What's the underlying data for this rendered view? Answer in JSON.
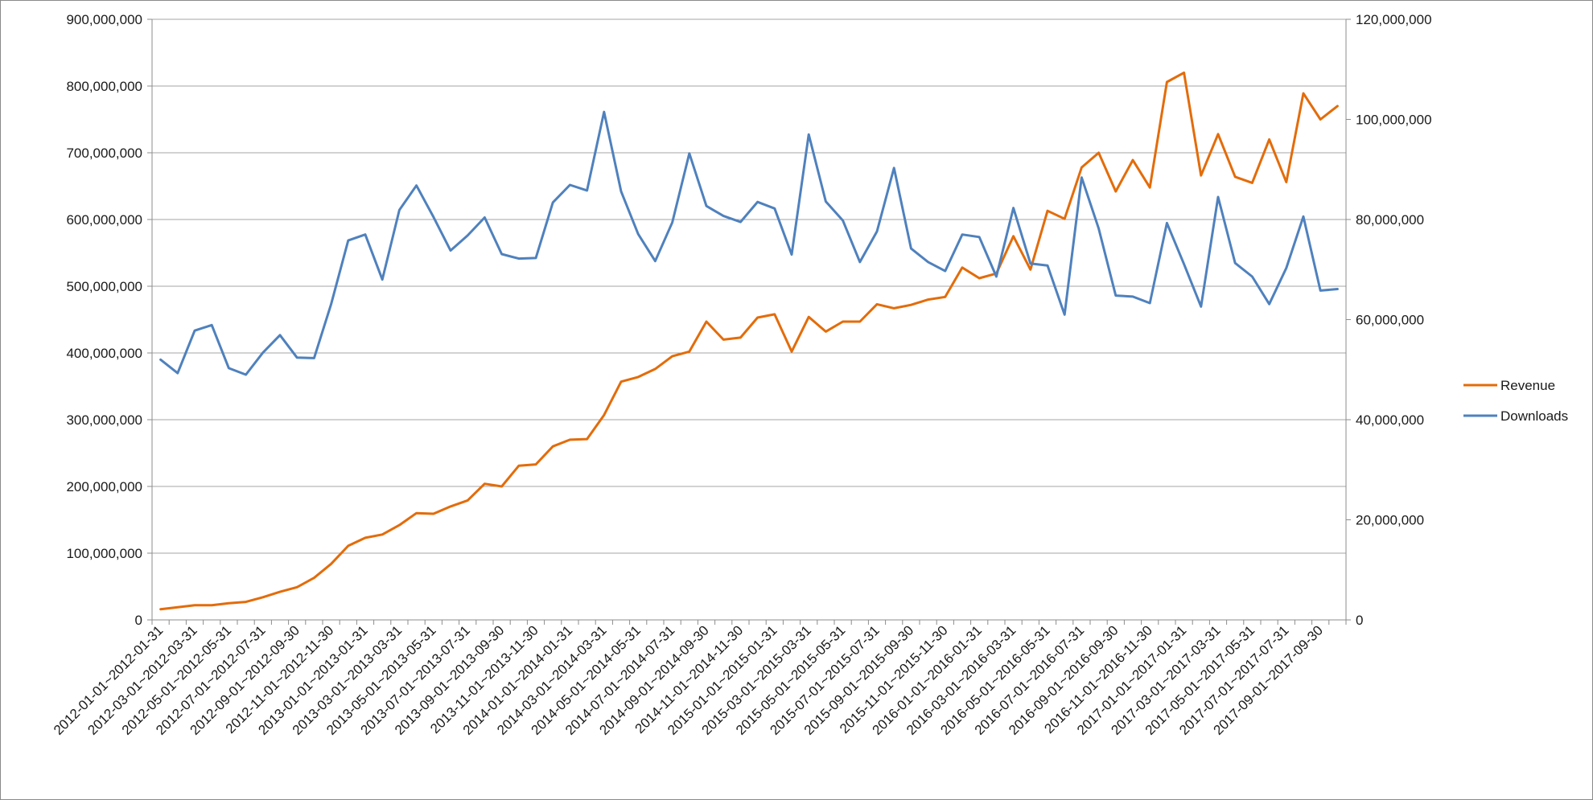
{
  "chart_data": {
    "type": "line",
    "title": "",
    "xlabel": "",
    "ylabel": "",
    "y2label": "",
    "ylim": [
      0,
      900000000
    ],
    "y2lim": [
      0,
      120000000
    ],
    "y_ticks": [
      "0",
      "100,000,000",
      "200,000,000",
      "300,000,000",
      "400,000,000",
      "500,000,000",
      "600,000,000",
      "700,000,000",
      "800,000,000",
      "900,000,000"
    ],
    "y2_ticks": [
      "0",
      "20,000,000",
      "40,000,000",
      "60,000,000",
      "80,000,000",
      "100,000,000",
      "120,000,000"
    ],
    "grid": true,
    "legend_position": "right",
    "x_tick_labels": [
      "2012-01-01~2012-01-31",
      "2012-03-01~2012-03-31",
      "2012-05-01~2012-05-31",
      "2012-07-01~2012-07-31",
      "2012-09-01~2012-09-30",
      "2012-11-01~2012-11-30",
      "2013-01-01~2013-01-31",
      "2013-03-01~2013-03-31",
      "2013-05-01~2013-05-31",
      "2013-07-01~2013-07-31",
      "2013-09-01~2013-09-30",
      "2013-11-01~2013-11-30",
      "2014-01-01~2014-01-31",
      "2014-03-01~2014-03-31",
      "2014-05-01~2014-05-31",
      "2014-07-01~2014-07-31",
      "2014-09-01~2014-09-30",
      "2014-11-01~2014-11-30",
      "2015-01-01~2015-01-31",
      "2015-03-01~2015-03-31",
      "2015-05-01~2015-05-31",
      "2015-07-01~2015-07-31",
      "2015-09-01~2015-09-30",
      "2015-11-01~2015-11-30",
      "2016-01-01~2016-01-31",
      "2016-03-01~2016-03-31",
      "2016-05-01~2016-05-31",
      "2016-07-01~2016-07-31",
      "2016-09-01~2016-09-30",
      "2016-11-01~2016-11-30",
      "2017-01-01~2017-01-31",
      "2017-03-01~2017-03-31",
      "2017-05-01~2017-05-31",
      "2017-07-01~2017-07-31",
      "2017-09-01~2017-09-30"
    ],
    "series": [
      {
        "name": "Revenue",
        "axis": "left",
        "color": "#E36C0A",
        "values": [
          16000000,
          19000000,
          22000000,
          22000000,
          25000000,
          27000000,
          34000000,
          42000000,
          49000000,
          63000000,
          84000000,
          111000000,
          123000000,
          128000000,
          142000000,
          160000000,
          159000000,
          170000000,
          179000000,
          204000000,
          200000000,
          231000000,
          233000000,
          260000000,
          270000000,
          271000000,
          307000000,
          357000000,
          364000000,
          376000000,
          395000000,
          402000000,
          447000000,
          420000000,
          423000000,
          453000000,
          458000000,
          402000000,
          454000000,
          432000000,
          447000000,
          447000000,
          473000000,
          467000000,
          472000000,
          480000000,
          484000000,
          528000000,
          512000000,
          519000000,
          575000000,
          525000000,
          613000000,
          601000000,
          678000000,
          700000000,
          642000000,
          689000000,
          648000000,
          806000000,
          820000000,
          666000000,
          728000000,
          664000000,
          655000000,
          720000000,
          656000000,
          789000000,
          750000000,
          770000000
        ]
      },
      {
        "name": "Downloads",
        "axis": "right",
        "color": "#4F81BD",
        "values": [
          52000000,
          49300000,
          57800000,
          58900000,
          50300000,
          49000000,
          53400000,
          56900000,
          52400000,
          52300000,
          63100000,
          75800000,
          77000000,
          68000000,
          81900000,
          86800000,
          80500000,
          73800000,
          76800000,
          80400000,
          73100000,
          72200000,
          72300000,
          83400000,
          86900000,
          85800000,
          101500000,
          85600000,
          77100000,
          71700000,
          79400000,
          93200000,
          82700000,
          80700000,
          79500000,
          83500000,
          82200000,
          73000000,
          97000000,
          83600000,
          79800000,
          71500000,
          77600000,
          90300000,
          74200000,
          71500000,
          69700000,
          77000000,
          76500000,
          68600000,
          82300000,
          71200000,
          70800000,
          61000000,
          88400000,
          78200000,
          64800000,
          64600000,
          63300000,
          79300000,
          71100000,
          62600000,
          84500000,
          71300000,
          68600000,
          63100000,
          70300000,
          80600000,
          65800000,
          66100000
        ]
      }
    ]
  }
}
